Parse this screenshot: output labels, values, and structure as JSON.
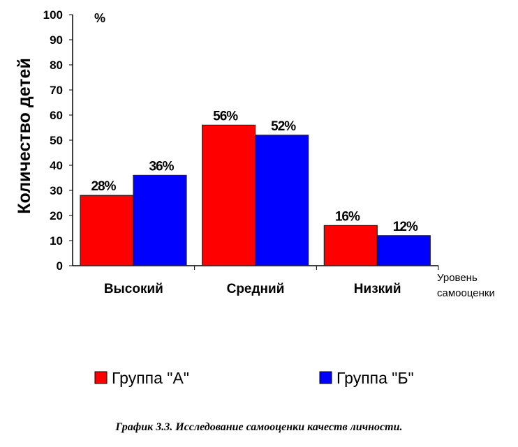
{
  "chart_data": {
    "type": "bar",
    "categories": [
      "Высокий",
      "Средний",
      "Низкий"
    ],
    "series": [
      {
        "name": "Группа \"А\"",
        "values": [
          28,
          56,
          16
        ],
        "labels": [
          "28%",
          "56%",
          "16%"
        ],
        "color": "#ff0000"
      },
      {
        "name": "Группа \"Б\"",
        "values": [
          36,
          52,
          12
        ],
        "labels": [
          "36%",
          "52%",
          "12%"
        ],
        "color": "#0000ff"
      }
    ],
    "ylabel": "Количество детей",
    "yunit": "%",
    "xlabel": [
      "Уровень",
      "самооценки"
    ],
    "ylim": [
      0,
      100
    ],
    "yticks": [
      0,
      10,
      20,
      30,
      40,
      50,
      60,
      70,
      80,
      90,
      100
    ],
    "grid": false,
    "legend": "bottom"
  },
  "caption": "График 3.3. Исследование самооценки качеств личности."
}
